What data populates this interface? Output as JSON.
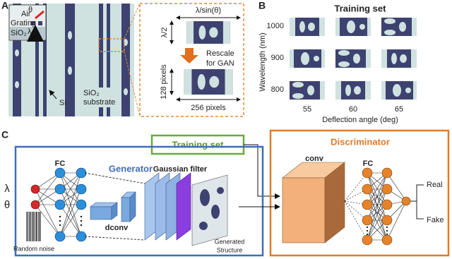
{
  "panel_a": {
    "label": "A",
    "inset": {
      "air": "Air",
      "grating": "Grating",
      "substrate_layer": "SiO₂",
      "theta": "θ",
      "lambda": "λ"
    },
    "si": "Si",
    "substrate": [
      "SiO₂",
      "substrate"
    ],
    "period": "λ/sin(θ)",
    "height": "λ/2",
    "rescale": [
      "Rescale",
      "for GAN"
    ],
    "height_px": "128 pixels",
    "width_px": "256 pixels"
  },
  "panel_b": {
    "label": "B",
    "title": "Training set",
    "y_label": "Wavelength (nm)",
    "wavelengths": [
      "1000",
      "900",
      "800"
    ],
    "angles": [
      "55",
      "60",
      "65"
    ],
    "x_label": "Deflection angle (deg)"
  },
  "panel_c": {
    "label": "C",
    "training_set": "Training set",
    "generator": {
      "title": "Generator",
      "inputs": [
        "λ",
        "θ"
      ],
      "noise": "Random noise",
      "fc": "FC",
      "dconv": "dconv",
      "filter": "Gaussian filter",
      "output": [
        "Generated",
        "Structure"
      ]
    },
    "discriminator": {
      "title": "Discriminator",
      "conv": "conv",
      "fc": "FC",
      "outputs": [
        "Real",
        "Fake"
      ]
    }
  }
}
